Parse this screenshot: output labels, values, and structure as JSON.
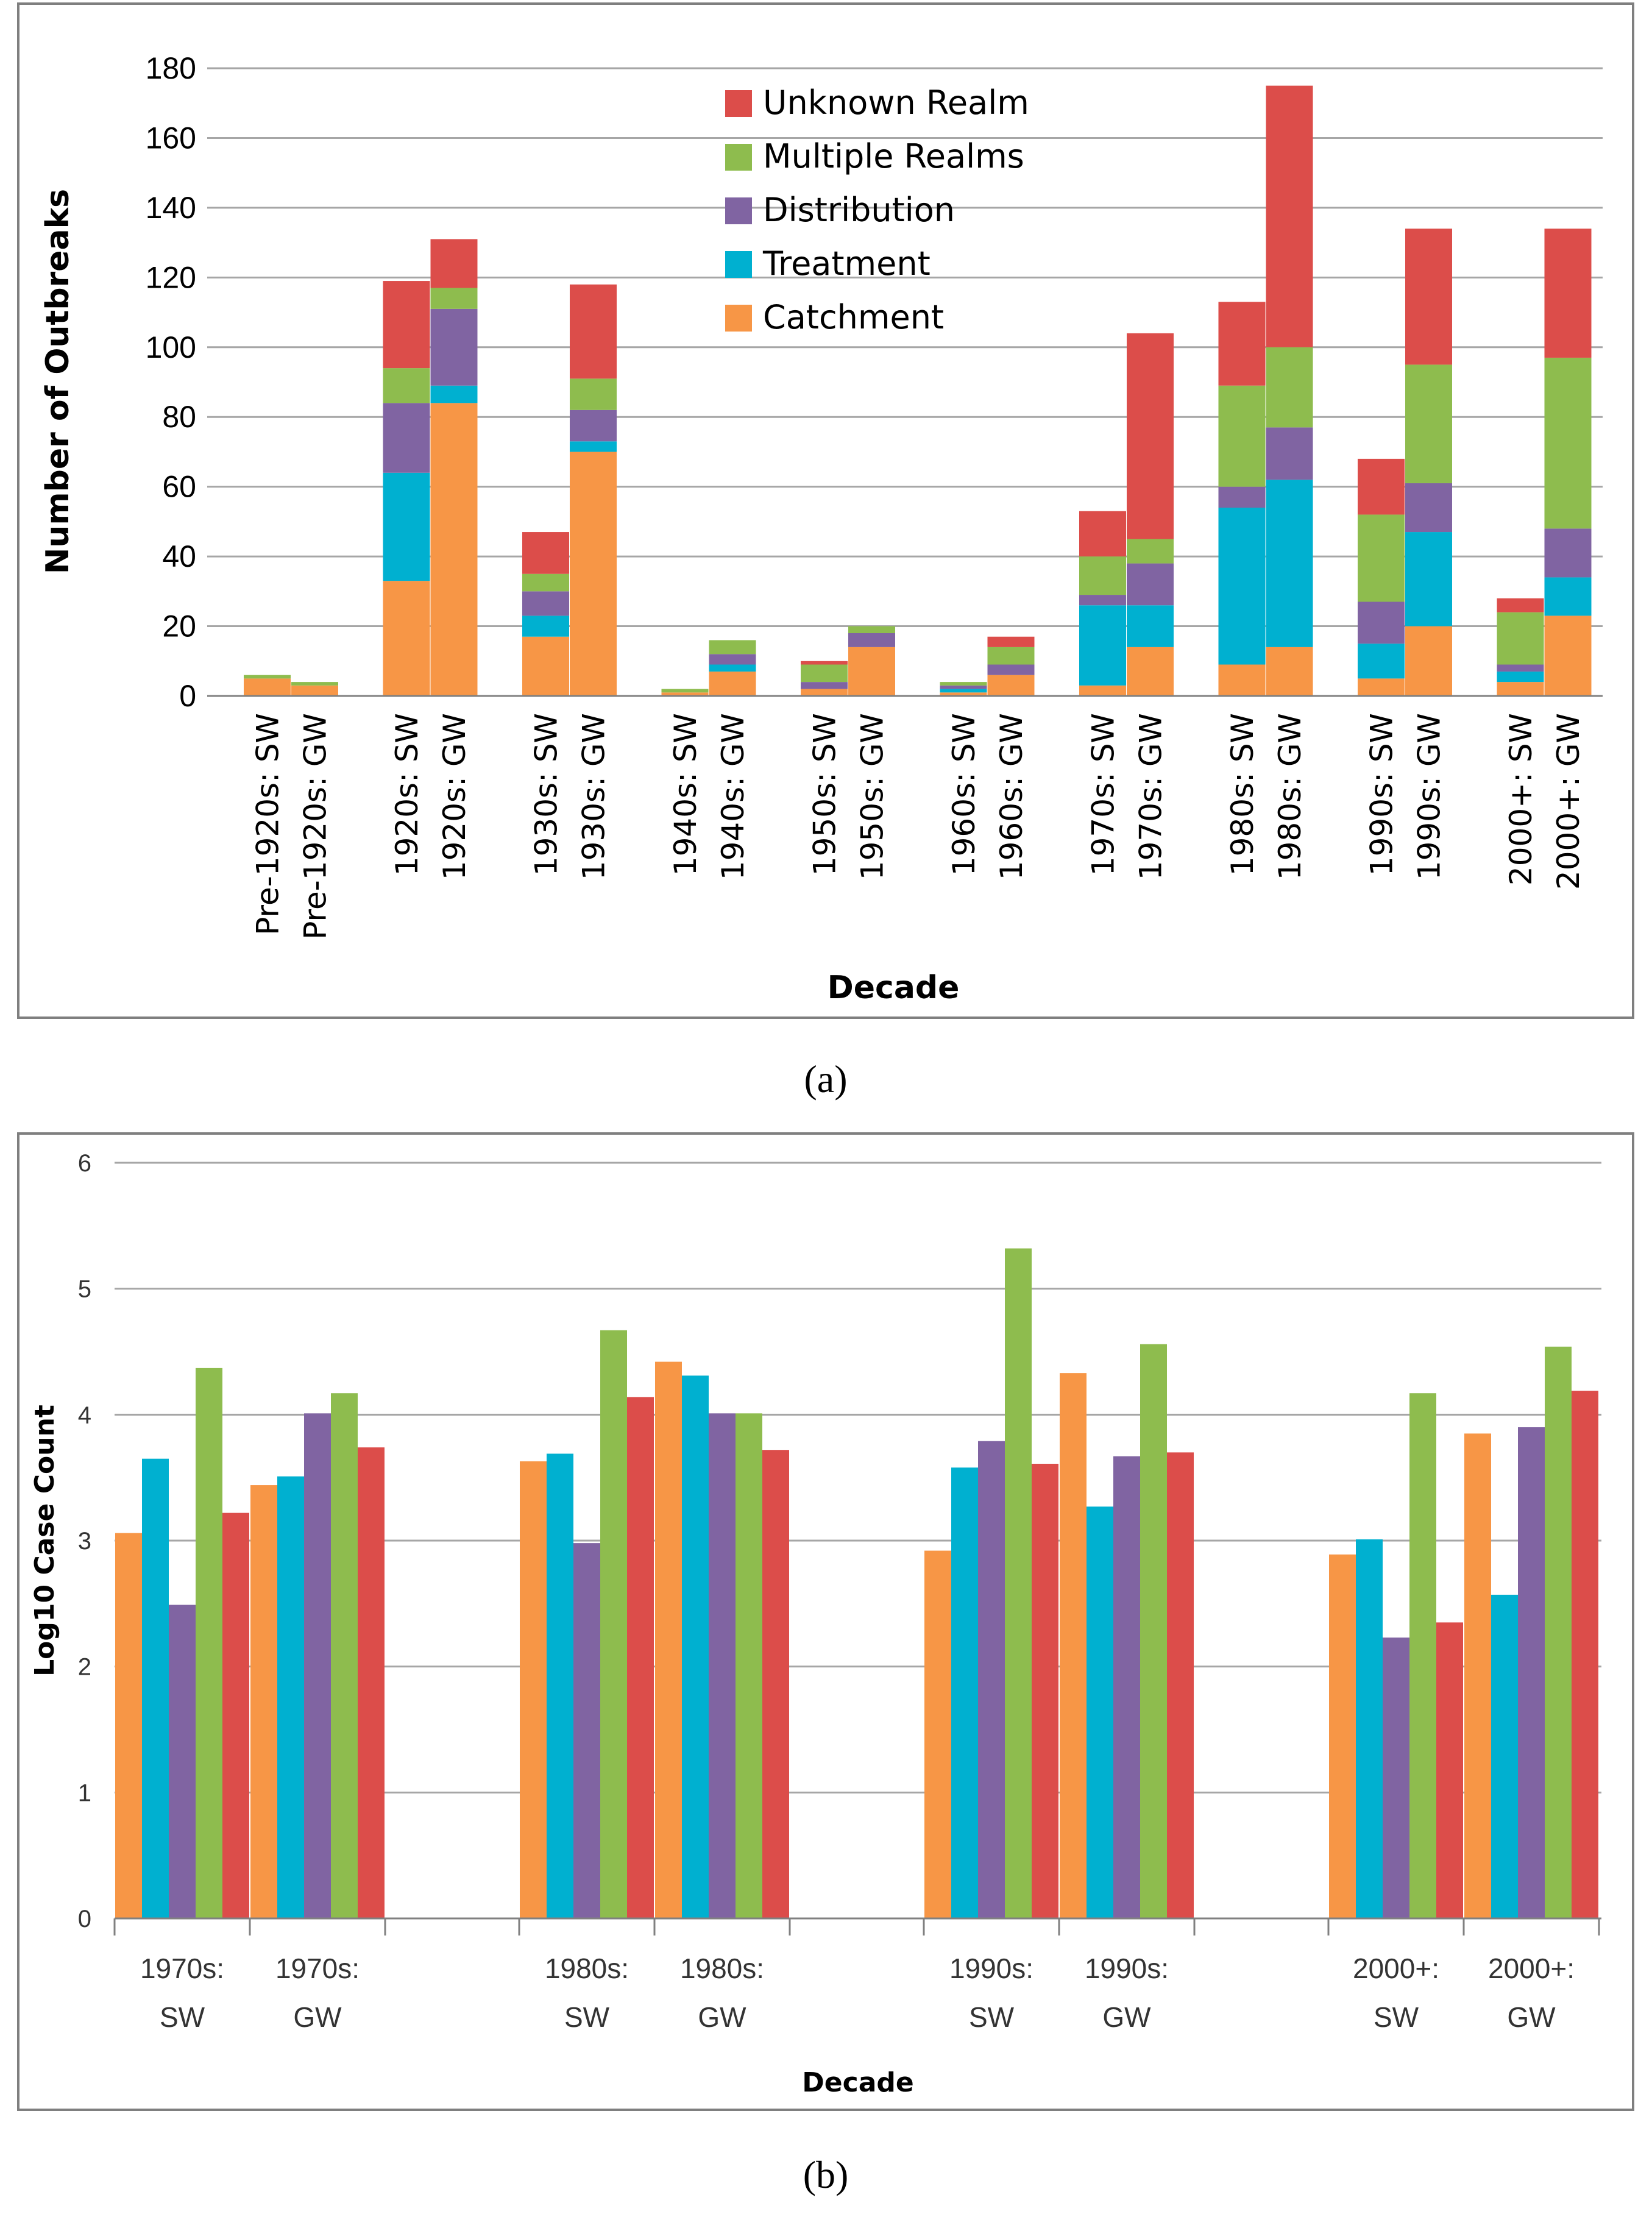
{
  "panels": {
    "a": "(a)",
    "b": "(b)"
  },
  "chart_data": [
    {
      "type": "bar",
      "stacked": true,
      "title": "",
      "xlabel": "Decade",
      "ylabel": "Number of Outbreaks",
      "ylim": [
        0,
        180
      ],
      "yticks": [
        "0",
        "20",
        "40",
        "60",
        "80",
        "100",
        "120",
        "140",
        "160",
        "180"
      ],
      "grid": true,
      "legend_position": "top-center",
      "categories": [
        "Pre-1920s: SW",
        "Pre-1920s: GW",
        "1920s: SW",
        "1920s: GW",
        "1930s: SW",
        "1930s: GW",
        "1940s: SW",
        "1940s: GW",
        "1950s: SW",
        "1950s: GW",
        "1960s: SW",
        "1960s: GW",
        "1970s: SW",
        "1970s: GW",
        "1980s: SW",
        "1980s: GW",
        "1990s: SW",
        "1990s: GW",
        "2000+: SW",
        "2000+: GW"
      ],
      "series": [
        {
          "name": "Catchment",
          "color": "#f79646",
          "values": [
            5,
            3,
            33,
            84,
            17,
            70,
            1,
            7,
            2,
            14,
            1,
            6,
            3,
            14,
            9,
            14,
            5,
            20,
            4,
            23
          ]
        },
        {
          "name": "Treatment",
          "color": "#00b0d0",
          "values": [
            0,
            0,
            31,
            5,
            6,
            3,
            0,
            2,
            0,
            0,
            1,
            0,
            23,
            12,
            45,
            48,
            10,
            27,
            3,
            11
          ]
        },
        {
          "name": "Distribution",
          "color": "#8064a2",
          "values": [
            0,
            0,
            20,
            22,
            7,
            9,
            0,
            3,
            2,
            4,
            1,
            3,
            3,
            12,
            6,
            15,
            12,
            14,
            2,
            14
          ]
        },
        {
          "name": "Multiple Realms",
          "color": "#8ebc4e",
          "values": [
            1,
            1,
            10,
            6,
            5,
            9,
            1,
            4,
            5,
            2,
            1,
            5,
            11,
            7,
            29,
            23,
            25,
            34,
            15,
            49
          ]
        },
        {
          "name": "Unknown Realm",
          "color": "#dc4d4a",
          "values": [
            0,
            0,
            25,
            14,
            12,
            27,
            0,
            0,
            1,
            0,
            0,
            3,
            13,
            59,
            24,
            75,
            16,
            39,
            4,
            37
          ]
        }
      ],
      "legend_order": [
        "Unknown Realm",
        "Multiple Realms",
        "Distribution",
        "Treatment",
        "Catchment"
      ]
    },
    {
      "type": "bar",
      "title": "",
      "xlabel": "Decade",
      "ylabel": "Log10 Case Count",
      "ylim": [
        0,
        6
      ],
      "yticks": [
        "0",
        "1",
        "2",
        "3",
        "4",
        "5",
        "6"
      ],
      "grid": true,
      "category_groups": [
        {
          "decade": "1970s",
          "items": [
            {
              "line1": "1970s:",
              "line2": "SW"
            },
            {
              "line1": "1970s:",
              "line2": "GW"
            }
          ]
        },
        {
          "decade": "1980s",
          "items": [
            {
              "line1": "1980s:",
              "line2": "SW"
            },
            {
              "line1": "1980s:",
              "line2": "GW"
            }
          ]
        },
        {
          "decade": "1990s",
          "items": [
            {
              "line1": "1990s:",
              "line2": "SW"
            },
            {
              "line1": "1990s:",
              "line2": "GW"
            }
          ]
        },
        {
          "decade": "2000+",
          "items": [
            {
              "line1": "2000+:",
              "line2": "SW"
            },
            {
              "line1": "2000+:",
              "line2": "GW"
            }
          ]
        }
      ],
      "series": [
        {
          "name": "Catchment",
          "color": "#f79646",
          "values": [
            3.06,
            3.44,
            3.63,
            4.42,
            2.92,
            4.33,
            2.89,
            3.85
          ]
        },
        {
          "name": "Treatment",
          "color": "#00b0d0",
          "values": [
            3.65,
            3.51,
            3.69,
            4.31,
            3.58,
            3.27,
            3.01,
            2.57
          ]
        },
        {
          "name": "Distribution",
          "color": "#8064a2",
          "values": [
            2.49,
            4.01,
            2.98,
            4.01,
            3.79,
            3.67,
            2.23,
            3.9
          ]
        },
        {
          "name": "Multiple Realms",
          "color": "#8ebc4e",
          "values": [
            4.37,
            4.17,
            4.67,
            4.01,
            5.32,
            4.56,
            4.17,
            4.54
          ]
        },
        {
          "name": "Unknown Realm",
          "color": "#dc4d4a",
          "values": [
            3.22,
            3.74,
            4.14,
            3.72,
            3.61,
            3.7,
            2.35,
            4.19
          ]
        }
      ]
    }
  ]
}
